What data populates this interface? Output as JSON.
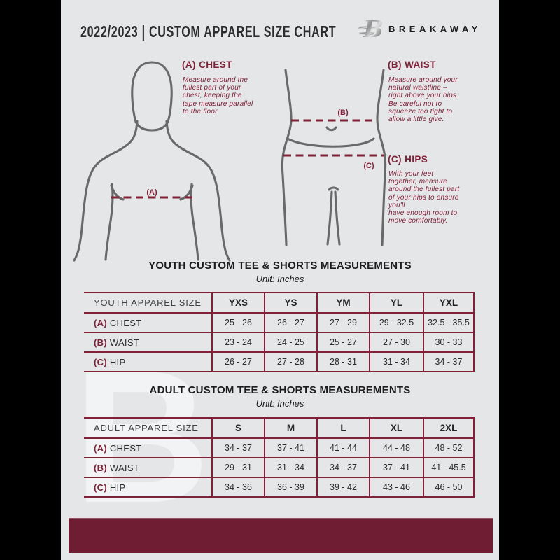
{
  "colors": {
    "maroon": "#802138",
    "footer_maroon": "#6f1d33",
    "doc_bg": "#e5e6e8",
    "canvas_bg": "#000000",
    "outline_gray": "#696969",
    "text_dark": "#2b2b2b"
  },
  "header": {
    "title": "2022/2023  |  CUSTOM APPAREL SIZE CHART",
    "brand": "BREAKAWAY",
    "logo_letter": "B"
  },
  "watermark_letter": "B",
  "figure_labels": {
    "chest": "(A)",
    "waist": "(B)",
    "hips": "(C)"
  },
  "instructions": [
    {
      "id": "A",
      "heading": "(A) CHEST",
      "body": "Measure around the\nfullest part of your\nchest, keeping the\ntape measure parallel\nto the floor"
    },
    {
      "id": "B",
      "heading": "(B) WAIST",
      "body": "Measure around your\nnatural waistline –\nright above your hips.\nBe careful not to\nsqueeze too tight to\nallow a little give."
    },
    {
      "id": "C",
      "heading": "(C) HIPS",
      "body": "With your feet\ntogether, measure\naround the fullest part\nof your hips to ensure\nyou'll\nhave enough room to\nmove comfortably."
    }
  ],
  "youth_table": {
    "title": "YOUTH CUSTOM TEE & SHORTS MEASUREMENTS",
    "unit": "Unit: Inches",
    "col_header": "YOUTH APPAREL SIZE",
    "sizes": [
      "YXS",
      "YS",
      "YM",
      "YL",
      "YXL"
    ],
    "rows": [
      {
        "prefix": "(A)",
        "label": "CHEST",
        "values": [
          "25 - 26",
          "26 - 27",
          "27 - 29",
          "29 - 32.5",
          "32.5 - 35.5"
        ]
      },
      {
        "prefix": "(B)",
        "label": "WAIST",
        "values": [
          "23 - 24",
          "24 - 25",
          "25 - 27",
          "27 - 30",
          "30 - 33"
        ]
      },
      {
        "prefix": "(C)",
        "label": "HIP",
        "values": [
          "26 - 27",
          "27 - 28",
          "28 - 31",
          "31 - 34",
          "34 - 37"
        ]
      }
    ]
  },
  "adult_table": {
    "title": "ADULT CUSTOM TEE & SHORTS MEASUREMENTS",
    "unit": "Unit: Inches",
    "col_header": "ADULT APPAREL SIZE",
    "sizes": [
      "S",
      "M",
      "L",
      "XL",
      "2XL"
    ],
    "rows": [
      {
        "prefix": "(A)",
        "label": "CHEST",
        "values": [
          "34 - 37",
          "37 - 41",
          "41 - 44",
          "44 - 48",
          "48 - 52"
        ]
      },
      {
        "prefix": "(B)",
        "label": "WAIST",
        "values": [
          "29 - 31",
          "31 - 34",
          "34 - 37",
          "37 - 41",
          "41 - 45.5"
        ]
      },
      {
        "prefix": "(C)",
        "label": "HIP",
        "values": [
          "34 - 36",
          "36 - 39",
          "39 - 42",
          "43 - 46",
          "46 - 50"
        ]
      }
    ]
  }
}
